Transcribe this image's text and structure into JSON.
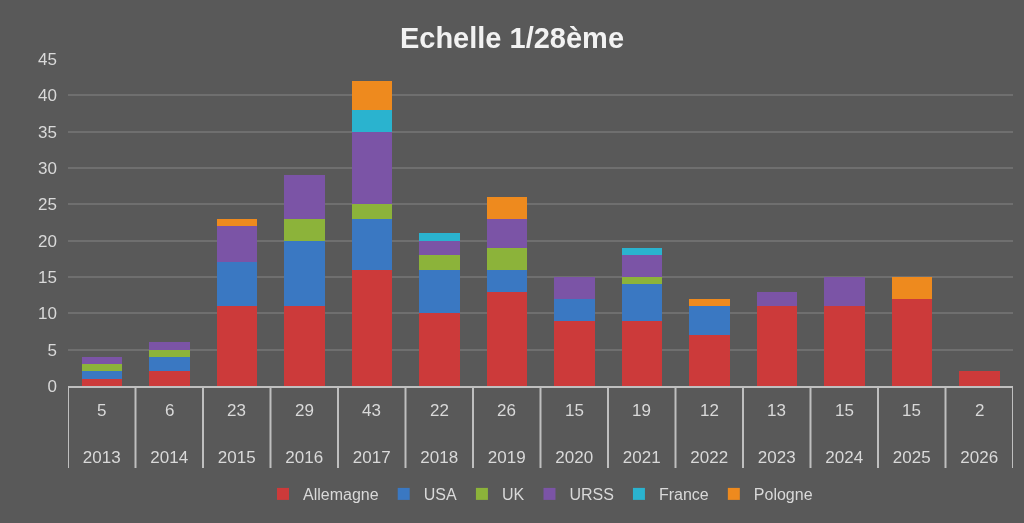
{
  "chart_data": {
    "type": "bar",
    "title": "Echelle 1/28ème",
    "categories": [
      "2013",
      "2014",
      "2015",
      "2016",
      "2017",
      "2018",
      "2019",
      "2020",
      "2021",
      "2022",
      "2023",
      "2024",
      "2025",
      "2026"
    ],
    "stacked": true,
    "series": [
      {
        "name": "Allemagne",
        "color": "#cc3a3a",
        "values": [
          1,
          2,
          11,
          11,
          16,
          10,
          13,
          9,
          9,
          7,
          11,
          11,
          12,
          2
        ]
      },
      {
        "name": "USA",
        "color": "#3a78c2",
        "values": [
          1,
          2,
          6,
          9,
          7,
          6,
          3,
          3,
          5,
          4,
          null,
          null,
          null,
          null
        ]
      },
      {
        "name": "UK",
        "color": "#8cb33a",
        "values": [
          1,
          1,
          null,
          3,
          2,
          2,
          3,
          null,
          1,
          null,
          null,
          null,
          null,
          null
        ]
      },
      {
        "name": "URSS",
        "color": "#7b54a6",
        "values": [
          1,
          1,
          5,
          6,
          10,
          2,
          4,
          3,
          3,
          null,
          2,
          4,
          null,
          null
        ]
      },
      {
        "name": "France",
        "color": "#2ab3cf",
        "values": [
          null,
          null,
          null,
          null,
          3,
          1,
          null,
          null,
          1,
          null,
          null,
          null,
          null,
          null
        ]
      },
      {
        "name": "Pologne",
        "color": "#ee8a1e",
        "values": [
          null,
          null,
          1,
          null,
          4,
          null,
          3,
          null,
          null,
          1,
          null,
          null,
          3,
          null
        ]
      }
    ],
    "totals": [
      "5",
      "6",
      "23",
      "29",
      "43",
      "22",
      "26",
      "15",
      "19",
      "12",
      "13",
      "15",
      "15",
      "2"
    ],
    "ylim": [
      0,
      45
    ],
    "yticks": [
      0,
      5,
      10,
      15,
      20,
      25,
      30,
      35,
      40,
      45
    ],
    "grid": "y",
    "legend": "bottom"
  }
}
